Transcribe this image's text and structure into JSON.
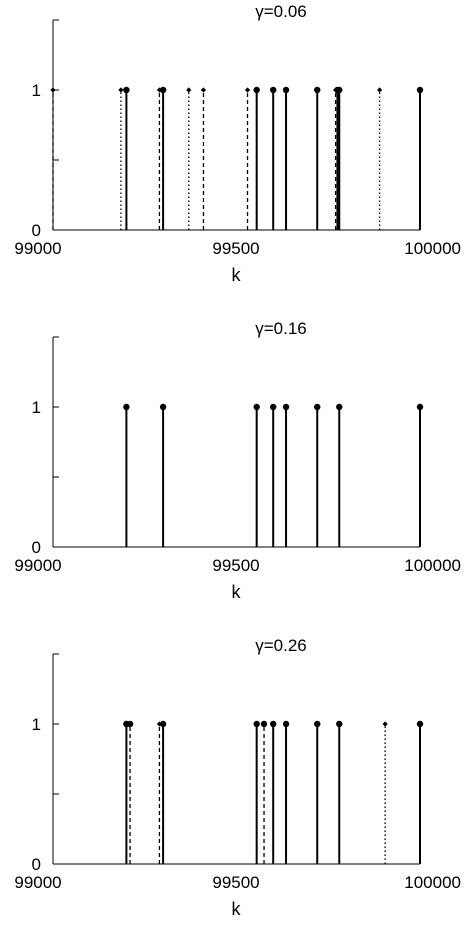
{
  "chart_data": [
    {
      "type": "stem",
      "title": "γ=0.06",
      "xlabel": "k",
      "ylabel": "",
      "xlim": [
        99000,
        100000
      ],
      "ylim": [
        0,
        1.5
      ],
      "xticks": [
        "99000",
        "99500",
        "100000"
      ],
      "yticks": [
        "0",
        "1"
      ],
      "series": [
        {
          "style": "solid",
          "marker": "circle",
          "x": [
            99200,
            99300,
            99555,
            99600,
            99635,
            99720,
            99775,
            99780,
            100000
          ],
          "values": [
            1,
            1,
            1,
            1,
            1,
            1,
            1,
            1,
            1
          ]
        },
        {
          "style": "dashed",
          "marker": "diamond",
          "x": [
            99000,
            99290,
            99530,
            99770
          ],
          "values": [
            1,
            1,
            1,
            1
          ]
        },
        {
          "style": "dotted",
          "marker": "diamond",
          "x": [
            99185,
            99370,
            99890
          ],
          "values": [
            1,
            1,
            1
          ]
        },
        {
          "style": "dashed",
          "marker": "diamond",
          "x": [
            99410
          ],
          "values": [
            1
          ]
        }
      ]
    },
    {
      "type": "stem",
      "title": "γ=0.16",
      "xlabel": "k",
      "ylabel": "",
      "xlim": [
        99000,
        100000
      ],
      "ylim": [
        0,
        1.5
      ],
      "xticks": [
        "99000",
        "99500",
        "100000"
      ],
      "yticks": [
        "0",
        "1"
      ],
      "series": [
        {
          "style": "solid",
          "marker": "circle",
          "x": [
            99200,
            99300,
            99555,
            99600,
            99635,
            99720,
            99780,
            100000
          ],
          "values": [
            1,
            1,
            1,
            1,
            1,
            1,
            1,
            1
          ]
        }
      ]
    },
    {
      "type": "stem",
      "title": "γ=0.26",
      "xlabel": "k",
      "ylabel": "",
      "xlim": [
        99000,
        100000
      ],
      "ylim": [
        0,
        1.5
      ],
      "xticks": [
        "99000",
        "99500",
        "100000"
      ],
      "yticks": [
        "0",
        "1"
      ],
      "series": [
        {
          "style": "solid",
          "marker": "circle",
          "x": [
            99200,
            99300,
            99555,
            99600,
            99635,
            99720,
            99780,
            100000
          ],
          "values": [
            1,
            1,
            1,
            1,
            1,
            1,
            1,
            1
          ]
        },
        {
          "style": "dashed",
          "marker": "circle",
          "x": [
            99210,
            99575
          ],
          "values": [
            1,
            1
          ]
        },
        {
          "style": "dashed",
          "marker": "diamond",
          "x": [
            99290
          ],
          "values": [
            1
          ]
        },
        {
          "style": "dotted",
          "marker": "diamond",
          "x": [
            99905
          ],
          "values": [
            1
          ]
        }
      ]
    }
  ]
}
